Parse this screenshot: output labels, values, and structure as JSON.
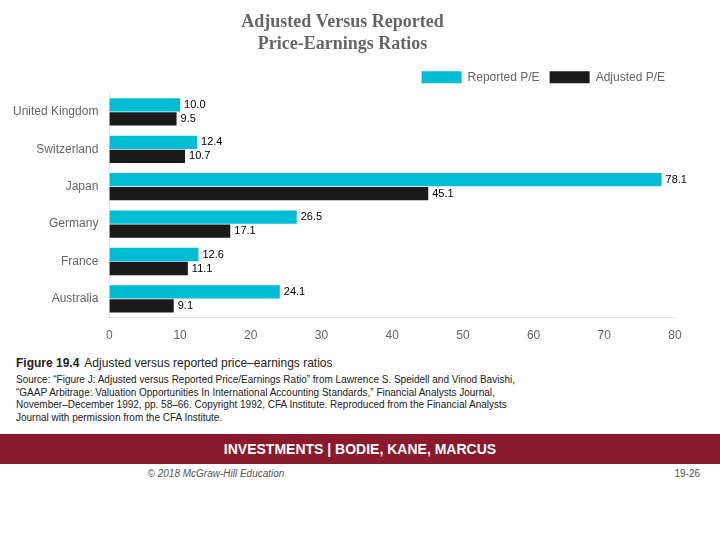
{
  "chart_data": {
    "type": "bar",
    "orientation": "horizontal",
    "title": [
      "Adjusted Versus Reported",
      "Price-Earnings Ratios"
    ],
    "categories": [
      "Australia",
      "France",
      "Germany",
      "Japan",
      "Switzerland",
      "United Kingdom"
    ],
    "series": [
      {
        "name": "Reported P/E",
        "color": "#00bcd4",
        "values": [
          24.1,
          12.6,
          26.5,
          78.1,
          12.4,
          10.0
        ],
        "value_labels": [
          "24.1",
          "12.6",
          "26.5",
          "78.1",
          "12.4",
          "10.0"
        ]
      },
      {
        "name": "Adjusted P/E",
        "color": "#1a1a1a",
        "values": [
          9.1,
          11.1,
          17.1,
          45.1,
          10.7,
          9.5
        ]
      }
    ],
    "xlim": [
      0,
      80
    ],
    "xticks": [
      0,
      10,
      20,
      30,
      40,
      50,
      60,
      70,
      80
    ],
    "grid": false,
    "legend": "upper right",
    "data_labels": true,
    "annotations": [
      "Figure 19.4",
      "Adjusted versus reported price–earnings ratios",
      "Source: “Figure J: Adjusted versus Reported Price/Earnings Ratio” from Lawrence S. Speidell and Vinod Bavishi,\n“GAAP Arbitrage: Valuation Opportunities In International Accounting Standards,” Financial Analysts Journal,\nNovember–December 1992, pp. 58–66. Copyright 1992, CFA Institute. Reproduced from the Financial Analysts\nJournal with permission from the CFA Institute.",
      "INVESTMENTS | BODIE, KANE, MARCUS",
      "© 2018 McGraw-Hill Education",
      "19-26"
    ]
  }
}
